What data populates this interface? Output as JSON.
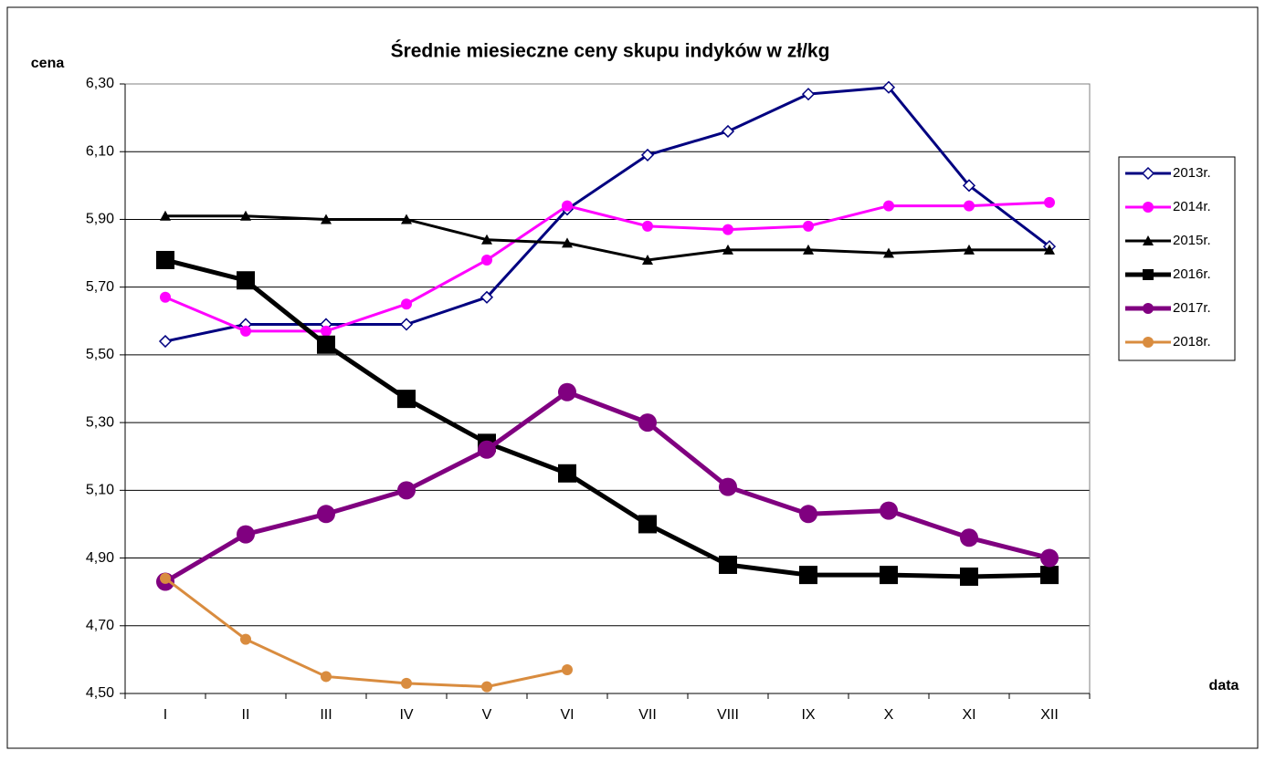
{
  "chart_data": {
    "type": "line",
    "title": "Średnie miesieczne ceny skupu indyków w zł/kg",
    "y_label": "cena",
    "x_label": "data",
    "categories": [
      "I",
      "II",
      "III",
      "IV",
      "V",
      "VI",
      "VII",
      "VIII",
      "IX",
      "X",
      "XI",
      "XII"
    ],
    "ylim": [
      4.5,
      6.3
    ],
    "yticks": [
      {
        "value": 4.5,
        "label": "4,50"
      },
      {
        "value": 4.7,
        "label": "4,70"
      },
      {
        "value": 4.9,
        "label": "4,90"
      },
      {
        "value": 5.1,
        "label": "5,10"
      },
      {
        "value": 5.3,
        "label": "5,30"
      },
      {
        "value": 5.5,
        "label": "5,50"
      },
      {
        "value": 5.7,
        "label": "5,70"
      },
      {
        "value": 5.9,
        "label": "5,90"
      },
      {
        "value": 6.1,
        "label": "6,10"
      },
      {
        "value": 6.3,
        "label": "6,30"
      }
    ],
    "grid": true,
    "legend": "right",
    "series": [
      {
        "name": "2013r.",
        "color": "#000080",
        "marker": "diamond",
        "line_width": 3,
        "values": [
          5.54,
          5.59,
          5.59,
          5.59,
          5.67,
          5.93,
          6.09,
          6.16,
          6.27,
          6.29,
          6.0,
          5.82
        ]
      },
      {
        "name": "2014r.",
        "color": "#ff00ff",
        "marker": "circle",
        "line_width": 3,
        "values": [
          5.67,
          5.57,
          5.57,
          5.65,
          5.78,
          5.94,
          5.88,
          5.87,
          5.88,
          5.94,
          5.94,
          5.95
        ]
      },
      {
        "name": "2015r.",
        "color": "#000000",
        "marker": "triangle",
        "line_width": 3,
        "values": [
          5.91,
          5.91,
          5.9,
          5.9,
          5.84,
          5.83,
          5.78,
          5.81,
          5.81,
          5.8,
          5.81,
          5.81
        ]
      },
      {
        "name": "2016r.",
        "color": "#000000",
        "marker": "square",
        "line_width": 5,
        "values": [
          5.78,
          5.72,
          5.53,
          5.37,
          5.24,
          5.15,
          5.0,
          4.88,
          4.85,
          4.85,
          4.845,
          4.85
        ]
      },
      {
        "name": "2017r.",
        "color": "#800080",
        "marker": "big-circle",
        "line_width": 5,
        "values": [
          4.83,
          4.97,
          5.03,
          5.1,
          5.22,
          5.39,
          5.3,
          5.11,
          5.03,
          5.04,
          4.96,
          4.9
        ]
      },
      {
        "name": "2018r.",
        "color": "#d98c3f",
        "marker": "circle",
        "line_width": 3,
        "values": [
          4.84,
          4.66,
          4.55,
          4.53,
          4.52,
          4.57,
          null,
          null,
          null,
          null,
          null,
          null
        ]
      }
    ]
  }
}
